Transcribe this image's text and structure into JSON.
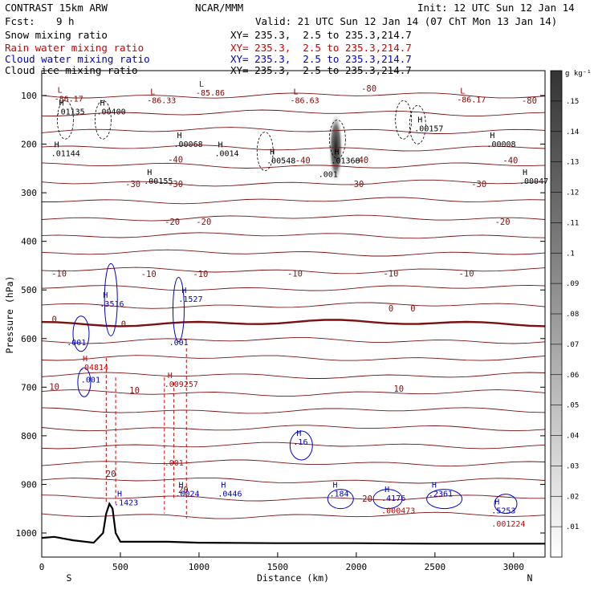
{
  "header": {
    "title_left": "CONTRAST 15km ARW",
    "title_center": "NCAR/MMM",
    "init": "Init: 12 UTC Sun 12 Jan 14",
    "fcst_label": "Fcst:",
    "fcst_value": "9 h",
    "valid": "Valid: 21 UTC Sun 12 Jan 14 (07 ChT Mon 13 Jan 14)"
  },
  "fields": [
    {
      "name": "Snow mixing ratio",
      "xy": "XY= 235.3,  2.5 to 235.3,214.7",
      "color": "#000000"
    },
    {
      "name": "Rain water mixing ratio",
      "xy": "XY= 235.3,  2.5 to 235.3,214.7",
      "color": "#d00000"
    },
    {
      "name": "Cloud water mixing ratio",
      "xy": "XY= 235.3,  2.5 to 235.3,214.7",
      "color": "#0000cc"
    },
    {
      "name": "Cloud ice mixing ratio",
      "xy": "XY= 235.3,  2.5 to 235.3,214.7",
      "color": "#000000"
    }
  ],
  "colorbar": {
    "unit": "g kg⁻¹",
    "levels": [
      ".01",
      ".02",
      ".03",
      ".04",
      ".05",
      ".06",
      ".07",
      ".08",
      ".09",
      ".1",
      ".11",
      ".12",
      ".13",
      ".14",
      ".15"
    ]
  },
  "chart_data": {
    "type": "cross-section contour",
    "xlabel": "Distance (km)",
    "ylabel": "Pressure (hPa)",
    "xlim": [
      0,
      3200
    ],
    "ylim": [
      1050,
      50
    ],
    "x_ticks": [
      0,
      500,
      1000,
      1500,
      2000,
      2500,
      3000
    ],
    "y_ticks": [
      100,
      200,
      300,
      400,
      500,
      600,
      700,
      800,
      900,
      1000
    ],
    "end_labels": {
      "left": "S",
      "right": "N"
    },
    "temperature_contour_labels": [
      {
        "text": "-80",
        "x": 2080,
        "p": 85
      },
      {
        "text": "-80",
        "x": 3100,
        "p": 110
      },
      {
        "text": "-40",
        "x": 850,
        "p": 231
      },
      {
        "text": "-40",
        "x": 1660,
        "p": 233
      },
      {
        "text": "-40",
        "x": 2030,
        "p": 232
      },
      {
        "text": "-40",
        "x": 2980,
        "p": 233
      },
      {
        "text": "-30",
        "x": 580,
        "p": 282
      },
      {
        "text": "-30",
        "x": 850,
        "p": 282
      },
      {
        "text": "-30",
        "x": 2000,
        "p": 282
      },
      {
        "text": "-30",
        "x": 2780,
        "p": 282
      },
      {
        "text": "-20",
        "x": 830,
        "p": 359
      },
      {
        "text": "-20",
        "x": 1030,
        "p": 359
      },
      {
        "text": "-20",
        "x": 2930,
        "p": 359
      },
      {
        "text": "-10",
        "x": 110,
        "p": 466
      },
      {
        "text": "-10",
        "x": 680,
        "p": 467
      },
      {
        "text": "-10",
        "x": 1010,
        "p": 467
      },
      {
        "text": "-10",
        "x": 1610,
        "p": 466
      },
      {
        "text": "-10",
        "x": 2220,
        "p": 466
      },
      {
        "text": "-10",
        "x": 2700,
        "p": 466
      },
      {
        "text": "0",
        "x": 80,
        "p": 560
      },
      {
        "text": "0",
        "x": 520,
        "p": 570
      },
      {
        "text": "0",
        "x": 2220,
        "p": 538
      },
      {
        "text": "0",
        "x": 2360,
        "p": 538
      },
      {
        "text": "10",
        "x": 80,
        "p": 699
      },
      {
        "text": "10",
        "x": 590,
        "p": 706
      },
      {
        "text": "10",
        "x": 2270,
        "p": 703
      },
      {
        "text": "20",
        "x": 440,
        "p": 878
      },
      {
        "text": "20",
        "x": 900,
        "p": 911
      },
      {
        "text": "20",
        "x": 2070,
        "p": 929
      }
    ],
    "extrema_labels": [
      {
        "mark": "L",
        "value": "-86.17",
        "x": 100,
        "p": 111,
        "color": "#8b0000"
      },
      {
        "mark": "L",
        "value": "-86.33",
        "x": 690,
        "p": 114,
        "color": "#8b0000"
      },
      {
        "mark": "L",
        "value": "-85.86",
        "x": 1000,
        "p": 98,
        "color": "#8b0000"
      },
      {
        "mark": "L",
        "value": "-86.63",
        "x": 1600,
        "p": 114,
        "color": "#8b0000"
      },
      {
        "mark": "L",
        "value": "-86.17",
        "x": 2660,
        "p": 112,
        "color": "#8b0000"
      },
      {
        "mark": "H",
        "value": ".01135",
        "x": 110,
        "p": 137,
        "color": "#000000"
      },
      {
        "mark": "H",
        "value": ".00400",
        "x": 370,
        "p": 137,
        "color": "#000000"
      },
      {
        "mark": "H",
        "value": ".00157",
        "x": 2390,
        "p": 172,
        "color": "#000000"
      },
      {
        "mark": "H",
        "value": ".01144",
        "x": 80,
        "p": 223,
        "color": "#000000"
      },
      {
        "mark": "H",
        "value": ".00068",
        "x": 860,
        "p": 204,
        "color": "#000000"
      },
      {
        "mark": "H",
        "value": ".0014",
        "x": 1120,
        "p": 223,
        "color": "#000000"
      },
      {
        "mark": "H",
        "value": ".00548",
        "x": 1450,
        "p": 238,
        "color": "#000000"
      },
      {
        "mark": "H",
        "value": ".01368",
        "x": 1860,
        "p": 238,
        "color": "#000000"
      },
      {
        "mark": "H",
        "value": ".00008",
        "x": 2850,
        "p": 204,
        "color": "#000000"
      },
      {
        "mark": "H",
        "value": ".00155",
        "x": 670,
        "p": 280,
        "color": "#000000"
      },
      {
        "mark": "H",
        "value": ".00047",
        "x": 3080,
        "p": 280,
        "color": "#000000"
      },
      {
        "mark": "",
        "value": ".001",
        "x": 1780,
        "p": 266,
        "color": "#000000"
      },
      {
        "mark": "H",
        "value": ".3516",
        "x": 390,
        "p": 533,
        "color": "#0000cc"
      },
      {
        "mark": "H",
        "value": ".1527",
        "x": 890,
        "p": 523,
        "color": "#0000cc"
      },
      {
        "mark": "",
        "value": ".001",
        "x": 180,
        "p": 612,
        "color": "#0000cc"
      },
      {
        "mark": "",
        "value": ".001",
        "x": 830,
        "p": 612,
        "color": "#0000cc"
      },
      {
        "mark": "H",
        "value": ".04814",
        "x": 260,
        "p": 663,
        "color": "#d00000"
      },
      {
        "mark": "",
        "value": ".001",
        "x": 270,
        "p": 689,
        "color": "#0000cc"
      },
      {
        "mark": "H",
        "value": ".009257",
        "x": 800,
        "p": 698,
        "color": "#d00000"
      },
      {
        "mark": "H",
        "value": ".16",
        "x": 1620,
        "p": 817,
        "color": "#0000cc"
      },
      {
        "mark": "",
        "value": ".001",
        "x": 800,
        "p": 860,
        "color": "#d00000"
      },
      {
        "mark": "H",
        "value": ".1423",
        "x": 480,
        "p": 941,
        "color": "#0000cc"
      },
      {
        "mark": "H",
        "value": ".0024",
        "x": 870,
        "p": 923,
        "color": "#0000cc"
      },
      {
        "mark": "H",
        "value": ".0446",
        "x": 1140,
        "p": 923,
        "color": "#0000cc"
      },
      {
        "mark": "H",
        "value": ".184",
        "x": 1850,
        "p": 923,
        "color": "#0000cc"
      },
      {
        "mark": "H",
        "value": ".4176",
        "x": 2180,
        "p": 932,
        "color": "#0000cc"
      },
      {
        "mark": "",
        "value": ".000473",
        "x": 2180,
        "p": 958,
        "color": "#d00000"
      },
      {
        "mark": "H",
        "value": ".2361",
        "x": 2480,
        "p": 923,
        "color": "#0000cc"
      },
      {
        "mark": "H",
        "value": ".5253",
        "x": 2880,
        "p": 958,
        "color": "#0000cc"
      },
      {
        "mark": "",
        "value": ".001224",
        "x": 2880,
        "p": 985,
        "color": "#d00000"
      }
    ],
    "terrain": [
      [
        0,
        1010
      ],
      [
        80,
        1008
      ],
      [
        200,
        1015
      ],
      [
        330,
        1020
      ],
      [
        390,
        1000
      ],
      [
        410,
        960
      ],
      [
        430,
        940
      ],
      [
        450,
        950
      ],
      [
        470,
        1000
      ],
      [
        500,
        1018
      ],
      [
        800,
        1018
      ],
      [
        1000,
        1020
      ],
      [
        1500,
        1021
      ],
      [
        2000,
        1021
      ],
      [
        2500,
        1022
      ],
      [
        3000,
        1022
      ],
      [
        3200,
        1022
      ]
    ]
  }
}
